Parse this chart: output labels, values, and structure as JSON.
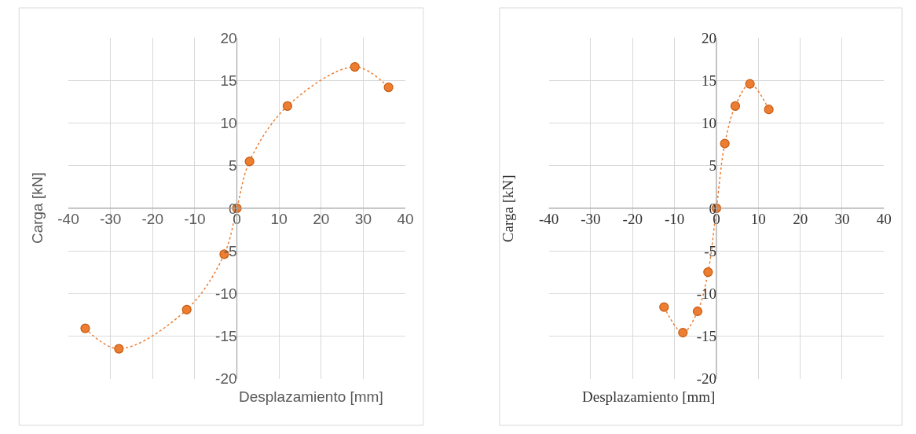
{
  "chart_data": [
    {
      "type": "line",
      "xlabel": "Desplazamiento [mm]",
      "ylabel": "Carga [kN]",
      "x": [
        -36,
        -28,
        -11.9,
        -3,
        0,
        3,
        12,
        28,
        36
      ],
      "series": [
        {
          "color": "#ed7d31",
          "values": [
            -14.1,
            -16.5,
            -11.9,
            -5.4,
            0,
            5.5,
            12,
            16.6,
            14.2
          ]
        }
      ],
      "marker": "circle",
      "line_style": "dotted",
      "grid": true,
      "xlim": [
        -40,
        40
      ],
      "ylim": [
        -20,
        20
      ],
      "xticks": [
        -40,
        -30,
        -20,
        -10,
        0,
        10,
        20,
        30,
        40
      ],
      "yticks": [
        -20,
        -15,
        -10,
        -5,
        0,
        5,
        10,
        15,
        20
      ]
    },
    {
      "type": "line",
      "xlabel": "Desplazamiento [mm]",
      "ylabel": "Carga [kN]",
      "x": [
        -12.5,
        -8,
        -4.5,
        -2,
        0,
        2,
        4.5,
        8,
        12.5
      ],
      "series": [
        {
          "color": "#ed7d31",
          "values": [
            -11.6,
            -14.6,
            -12.1,
            -7.5,
            0,
            7.6,
            12,
            14.6,
            11.6
          ]
        }
      ],
      "marker": "circle",
      "line_style": "dotted",
      "grid": true,
      "xlim": [
        -40,
        40
      ],
      "ylim": [
        -20,
        20
      ],
      "xticks": [
        -40,
        -30,
        -20,
        -10,
        0,
        10,
        20,
        30,
        40
      ],
      "yticks": [
        -20,
        -15,
        -10,
        -5,
        0,
        5,
        10,
        15,
        20
      ]
    }
  ]
}
